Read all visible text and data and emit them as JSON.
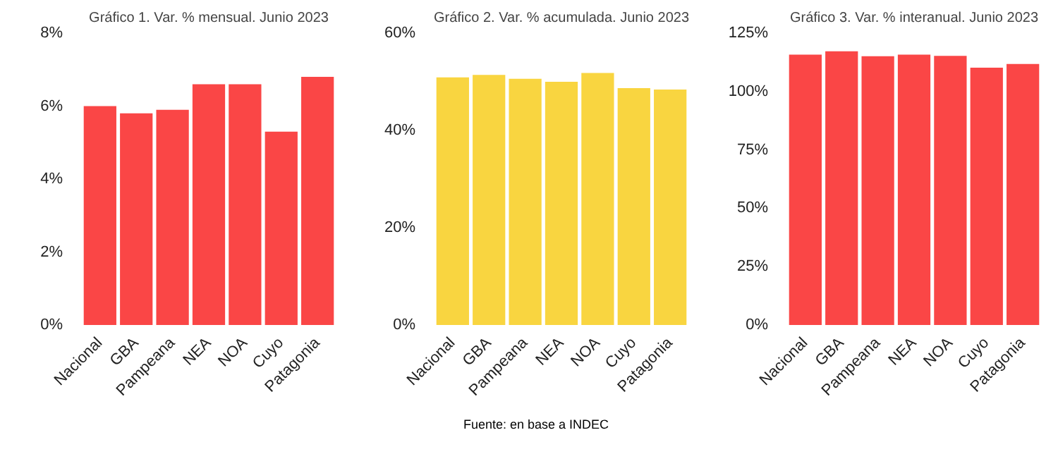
{
  "chart_data": [
    {
      "type": "bar",
      "title": "Gráfico 1. Var. % mensual. Junio 2023",
      "categories": [
        "Nacional",
        "GBA",
        "Pampeana",
        "NEA",
        "NOA",
        "Cuyo",
        "Patagonia"
      ],
      "values": [
        6.0,
        5.8,
        5.9,
        6.6,
        6.6,
        5.3,
        6.8
      ],
      "color": "#fa4646",
      "ylim": [
        0,
        8
      ],
      "yticks": [
        {
          "value": 0,
          "label": "0%"
        },
        {
          "value": 2,
          "label": "2%"
        },
        {
          "value": 4,
          "label": "4%"
        },
        {
          "value": 6,
          "label": "6%"
        },
        {
          "value": 8,
          "label": "8%"
        }
      ],
      "grid": false
    },
    {
      "type": "bar",
      "title": "Gráfico 2. Var. % acumulada. Junio 2023",
      "categories": [
        "Nacional",
        "GBA",
        "Pampeana",
        "NEA",
        "NOA",
        "Cuyo",
        "Patagonia"
      ],
      "values": [
        50.9,
        51.4,
        50.6,
        50.0,
        51.8,
        48.7,
        48.4
      ],
      "color": "#f9d540",
      "ylim": [
        0,
        60
      ],
      "yticks": [
        {
          "value": 0,
          "label": "0%"
        },
        {
          "value": 20,
          "label": "20%"
        },
        {
          "value": 40,
          "label": "40%"
        },
        {
          "value": 60,
          "label": "60%"
        }
      ],
      "grid": false
    },
    {
      "type": "bar",
      "title": "Gráfico 3. Var. % interanual. Junio 2023",
      "categories": [
        "Nacional",
        "GBA",
        "Pampeana",
        "NEA",
        "NOA",
        "Cuyo",
        "Patagonia"
      ],
      "values": [
        115.8,
        117.2,
        115.1,
        115.8,
        115.3,
        110.2,
        111.8
      ],
      "color": "#fa4646",
      "ylim": [
        0,
        125
      ],
      "yticks": [
        {
          "value": 0,
          "label": "0%"
        },
        {
          "value": 25,
          "label": "25%"
        },
        {
          "value": 50,
          "label": "50%"
        },
        {
          "value": 75,
          "label": "75%"
        },
        {
          "value": 100,
          "label": "100%"
        },
        {
          "value": 125,
          "label": "125%"
        }
      ],
      "grid": false,
      "annotations": [
        "Fuente: en base a INDEC"
      ]
    }
  ]
}
